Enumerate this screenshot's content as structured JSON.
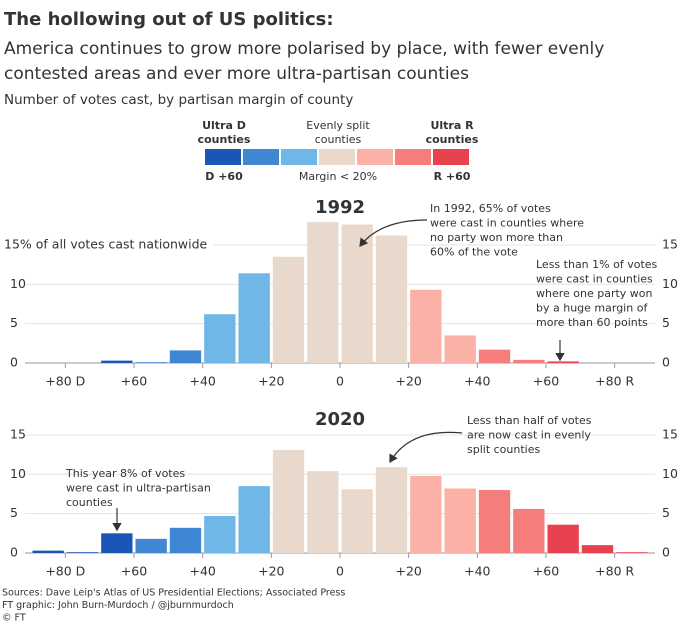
{
  "title": "The hollowing out of US politics:",
  "subtitle": [
    "America continues to grow more polarised by place, with fewer evenly",
    "contested areas and ever more ultra-partisan counties"
  ],
  "subhead": "Number of votes cast, by partisan margin of county",
  "legend": {
    "colors": [
      "#1a56b8",
      "#3f86d3",
      "#6fb7e6",
      "#e9d9cd",
      "#fbb1a6",
      "#f57d7b",
      "#e8424e"
    ],
    "top": [
      [
        "Ultra D",
        "counties"
      ],
      [
        "Evenly split",
        "counties"
      ],
      [
        "Ultra R",
        "counties"
      ]
    ],
    "bottom": [
      "D +60",
      "Margin < 20%",
      "R +60"
    ]
  },
  "chart_data": [
    {
      "type": "histogram",
      "title": "1992",
      "bins": [
        -90,
        -80,
        -70,
        -60,
        -50,
        -40,
        -30,
        -20,
        -10,
        0,
        10,
        20,
        30,
        40,
        50,
        60,
        70,
        80,
        90
      ],
      "values": [
        0,
        0,
        0.3,
        0.1,
        1.6,
        6.2,
        11.4,
        13.5,
        17.9,
        17.6,
        16.2,
        9.3,
        3.5,
        1.7,
        0.4,
        0.2,
        0,
        0
      ],
      "colors": [
        "#1a56b8",
        "#1a56b8",
        "#1a56b8",
        "#3f86d3",
        "#3f86d3",
        "#6fb7e6",
        "#6fb7e6",
        "#e9d9cd",
        "#e9d9cd",
        "#e9d9cd",
        "#e9d9cd",
        "#fbb1a6",
        "#fbb1a6",
        "#f57d7b",
        "#f57d7b",
        "#e8424e",
        "#e8424e",
        "#e8424e"
      ],
      "xlim": [
        -90,
        90
      ],
      "xticks": [
        {
          "value": -80,
          "label": "+80 D"
        },
        {
          "value": -60,
          "label": "+60"
        },
        {
          "value": -40,
          "label": "+40"
        },
        {
          "value": -20,
          "label": "+20"
        },
        0,
        {
          "value": 20,
          "label": "+20"
        },
        {
          "value": 40,
          "label": "+40"
        },
        {
          "value": 60,
          "label": "+60"
        },
        {
          "value": 80,
          "label": "+80 R"
        }
      ],
      "xtick_colors": [
        "#1a4fa8",
        "#1a4fa8",
        "#2f73c4",
        "#4aa3db",
        "#666666",
        "#f08a86",
        "#e05a5e",
        "#d8323e",
        "#c8202e"
      ],
      "ylim": [
        0,
        18
      ],
      "yticks": [
        0,
        5,
        10,
        {
          "value": 15,
          "label": "15% of all votes cast nationwide"
        }
      ],
      "y2lim": [
        0,
        18
      ],
      "y2ticks": [
        0,
        5,
        10,
        15
      ],
      "grid": true,
      "annotations": [
        {
          "lines": [
            "In 1992, 65% of votes",
            "were cast in counties where",
            "no party won more than",
            "60% of the vote"
          ]
        },
        {
          "lines": [
            "Less than 1% of votes",
            "were cast in counties",
            "where one party won",
            "by a huge margin of",
            "more than 60 points"
          ]
        }
      ]
    },
    {
      "type": "histogram",
      "title": "2020",
      "bins": [
        -90,
        -80,
        -70,
        -60,
        -50,
        -40,
        -30,
        -20,
        -10,
        0,
        10,
        20,
        30,
        40,
        50,
        60,
        70,
        80,
        90
      ],
      "values": [
        0.3,
        0.1,
        2.5,
        1.8,
        3.2,
        4.7,
        8.5,
        13.1,
        10.4,
        8.1,
        10.9,
        9.8,
        8.2,
        8.0,
        5.6,
        3.6,
        1.0,
        0.1
      ],
      "colors": [
        "#1a56b8",
        "#1a56b8",
        "#1a56b8",
        "#3f86d3",
        "#3f86d3",
        "#6fb7e6",
        "#6fb7e6",
        "#e9d9cd",
        "#e9d9cd",
        "#e9d9cd",
        "#e9d9cd",
        "#fbb1a6",
        "#fbb1a6",
        "#f57d7b",
        "#f57d7b",
        "#e8424e",
        "#e8424e",
        "#e8424e"
      ],
      "xlim": [
        -90,
        90
      ],
      "xticks": [
        {
          "value": -80,
          "label": "+80 D"
        },
        {
          "value": -60,
          "label": "+60"
        },
        {
          "value": -40,
          "label": "+40"
        },
        {
          "value": -20,
          "label": "+20"
        },
        0,
        {
          "value": 20,
          "label": "+20"
        },
        {
          "value": 40,
          "label": "+40"
        },
        {
          "value": 60,
          "label": "+60"
        },
        {
          "value": 80,
          "label": "+80 R"
        }
      ],
      "xtick_colors": [
        "#1a4fa8",
        "#1a4fa8",
        "#2f73c4",
        "#4aa3db",
        "#666666",
        "#f08a86",
        "#e05a5e",
        "#d8323e",
        "#c8202e"
      ],
      "ylim": [
        0,
        16
      ],
      "yticks": [
        0,
        5,
        10,
        15
      ],
      "y2lim": [
        0,
        16
      ],
      "y2ticks": [
        0,
        5,
        10,
        15
      ],
      "grid": true,
      "annotations": [
        {
          "lines": [
            "Less than half of votes",
            "are now cast in evenly",
            "split counties"
          ]
        },
        {
          "lines": [
            "This year 8% of votes",
            "were cast in ultra-partisan",
            "counties"
          ]
        }
      ]
    }
  ],
  "sources": [
    "Sources: Dave Leip's Atlas of US Presidential Elections; Associated Press",
    "FT graphic: John Burn-Murdoch / @jburnmurdoch",
    "© FT"
  ]
}
